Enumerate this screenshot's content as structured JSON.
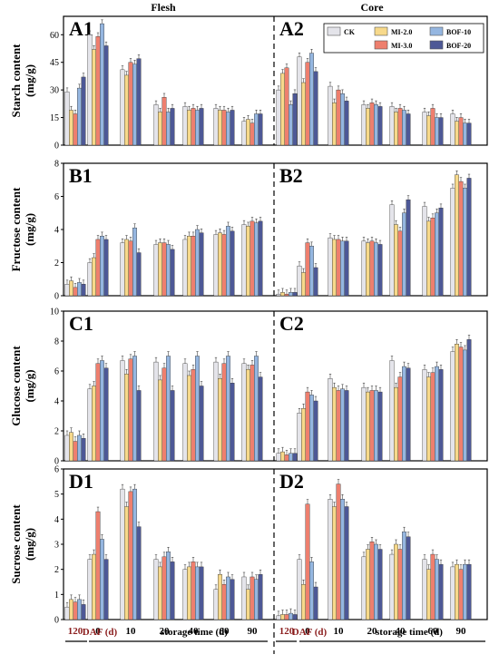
{
  "column_titles": [
    "Flesh",
    "Core"
  ],
  "x_labels": [
    "120",
    "0",
    "10",
    "20",
    "40",
    "60",
    "90"
  ],
  "bottom": {
    "daf_label": "DAF (d)",
    "storage_label": "storage time (d)"
  },
  "legend": [
    {
      "name": "CK",
      "color": "#e4e4ea"
    },
    {
      "name": "MI-2.0",
      "color": "#f7d98b"
    },
    {
      "name": "MI-3.0",
      "color": "#ee7f6e"
    },
    {
      "name": "BOF-10",
      "color": "#95b6e0"
    },
    {
      "name": "BOF-20",
      "color": "#4d5896"
    }
  ],
  "chart_data": [
    {
      "type": "bar",
      "id": "A",
      "ylabel": "Starch content (mg/g)",
      "ylim": [
        0,
        70
      ],
      "yticks": [
        0,
        15,
        30,
        45,
        60
      ],
      "panel_labels": [
        "A1",
        "A2"
      ],
      "categories": [
        "120",
        "0",
        "10",
        "20",
        "40",
        "60",
        "90"
      ],
      "flesh": [
        [
          29,
          19,
          17,
          31,
          37
        ],
        [
          60,
          52,
          59,
          66,
          54
        ],
        [
          41,
          38,
          45,
          44,
          47
        ],
        [
          22,
          18,
          26,
          18,
          20
        ],
        [
          21,
          19,
          20,
          19,
          20
        ],
        [
          20,
          19,
          19,
          18,
          19
        ],
        [
          13,
          14,
          12,
          17,
          17
        ]
      ],
      "core": [
        [
          30,
          39,
          42,
          22,
          28
        ],
        [
          48,
          34,
          45,
          50,
          40
        ],
        [
          32,
          23,
          30,
          28,
          24
        ],
        [
          22,
          20,
          23,
          22,
          21
        ],
        [
          21,
          18,
          20,
          19,
          17
        ],
        [
          18,
          16,
          20,
          15,
          15
        ],
        [
          17,
          13,
          15,
          12,
          12
        ]
      ]
    },
    {
      "type": "bar",
      "id": "B",
      "ylabel": "Fructose content (mg/g)",
      "ylim": [
        0,
        8
      ],
      "yticks": [
        0,
        2,
        4,
        6,
        8
      ],
      "panel_labels": [
        "B1",
        "B2"
      ],
      "categories": [
        "120",
        "0",
        "10",
        "20",
        "40",
        "60",
        "90"
      ],
      "flesh": [
        [
          0.7,
          0.9,
          0.5,
          0.8,
          0.7
        ],
        [
          2.0,
          2.3,
          3.4,
          3.6,
          3.4
        ],
        [
          3.2,
          3.4,
          3.3,
          4.1,
          2.6
        ],
        [
          3.1,
          3.2,
          3.2,
          3.1,
          2.8
        ],
        [
          3.4,
          3.6,
          3.6,
          4.0,
          3.8
        ],
        [
          3.7,
          3.8,
          3.7,
          4.2,
          3.9
        ],
        [
          4.3,
          4.2,
          4.5,
          4.4,
          4.5
        ]
      ],
      "core": [
        [
          0.1,
          0.2,
          0.1,
          0.2,
          0.2
        ],
        [
          1.8,
          1.4,
          3.2,
          3.0,
          1.7
        ],
        [
          3.5,
          3.4,
          3.4,
          3.3,
          3.3
        ],
        [
          3.3,
          3.2,
          3.3,
          3.2,
          3.1
        ],
        [
          5.5,
          4.3,
          3.9,
          5.0,
          5.8
        ],
        [
          5.4,
          4.5,
          4.7,
          5.0,
          5.3
        ],
        [
          6.5,
          7.3,
          6.9,
          6.5,
          7.1
        ]
      ]
    },
    {
      "type": "bar",
      "id": "C",
      "ylabel": "Glucose content (mg/g)",
      "ylim": [
        0,
        10
      ],
      "yticks": [
        0,
        2,
        4,
        6,
        8,
        10
      ],
      "panel_labels": [
        "C1",
        "C2"
      ],
      "categories": [
        "120",
        "0",
        "10",
        "20",
        "40",
        "60",
        "90"
      ],
      "flesh": [
        [
          1.7,
          1.9,
          1.3,
          1.7,
          1.5
        ],
        [
          4.8,
          5.0,
          6.5,
          6.7,
          6.2
        ],
        [
          6.7,
          5.8,
          6.8,
          7.0,
          4.7
        ],
        [
          6.6,
          5.4,
          6.2,
          7.0,
          4.7
        ],
        [
          6.5,
          5.7,
          6.1,
          7.0,
          5.0
        ],
        [
          6.6,
          5.5,
          6.5,
          7.0,
          5.2
        ],
        [
          6.5,
          6.1,
          6.4,
          7.0,
          5.6
        ]
      ],
      "core": [
        [
          0.5,
          0.6,
          0.4,
          0.5,
          0.5
        ],
        [
          3.2,
          3.5,
          4.6,
          4.4,
          4.0
        ],
        [
          5.5,
          4.9,
          4.7,
          4.8,
          4.7
        ],
        [
          4.9,
          4.6,
          4.7,
          4.7,
          4.6
        ],
        [
          6.7,
          4.9,
          5.6,
          6.3,
          6.2
        ],
        [
          6.1,
          5.6,
          5.9,
          6.3,
          6.1
        ],
        [
          7.3,
          7.8,
          7.6,
          7.4,
          8.1
        ]
      ]
    },
    {
      "type": "bar",
      "id": "D",
      "ylabel": "Sucrose content (mg/g)",
      "ylim": [
        0,
        6
      ],
      "yticks": [
        0,
        1,
        2,
        3,
        4,
        5,
        6
      ],
      "panel_labels": [
        "D1",
        "D2"
      ],
      "categories": [
        "120",
        "0",
        "10",
        "20",
        "40",
        "60",
        "90"
      ],
      "flesh": [
        [
          0.5,
          0.8,
          0.7,
          0.8,
          0.6
        ],
        [
          2.4,
          2.6,
          4.3,
          3.2,
          2.4
        ],
        [
          5.2,
          4.5,
          5.1,
          5.2,
          3.7
        ],
        [
          2.4,
          2.1,
          2.5,
          2.7,
          2.3
        ],
        [
          2.0,
          2.1,
          2.3,
          2.1,
          2.1
        ],
        [
          1.2,
          1.8,
          1.4,
          1.7,
          1.6
        ],
        [
          1.7,
          1.2,
          1.7,
          1.6,
          1.8
        ]
      ],
      "core": [
        [
          0.15,
          0.2,
          0.2,
          0.25,
          0.2
        ],
        [
          2.4,
          1.4,
          4.6,
          2.3,
          1.3
        ],
        [
          4.8,
          4.5,
          5.4,
          4.8,
          4.5
        ],
        [
          2.5,
          2.8,
          3.1,
          3.0,
          2.8
        ],
        [
          2.6,
          3.0,
          2.8,
          3.5,
          3.3
        ],
        [
          2.4,
          2.0,
          2.6,
          2.4,
          2.2
        ],
        [
          2.1,
          2.2,
          2.0,
          2.2,
          2.2
        ]
      ]
    }
  ]
}
